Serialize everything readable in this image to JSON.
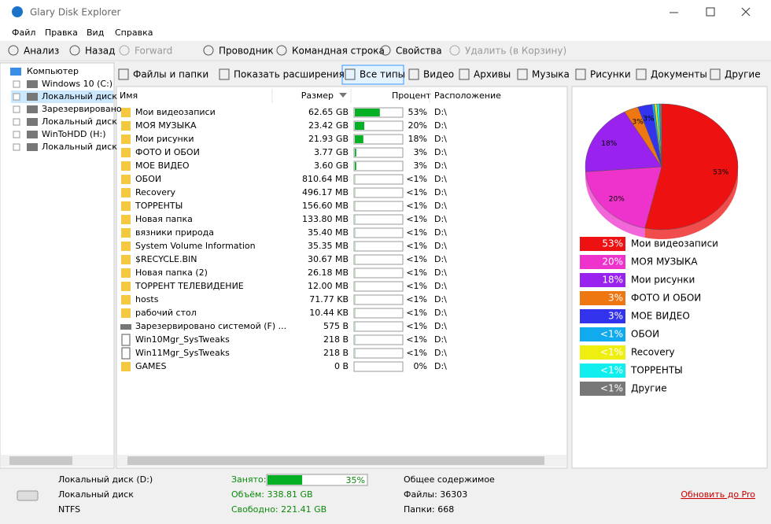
{
  "window": {
    "title": "Glary Disk Explorer"
  },
  "menu": [
    "Файл",
    "Правка",
    "Вид",
    "Справка"
  ],
  "toolbar": [
    "Анализ",
    "Назад",
    "Forward",
    "Проводник",
    "Командная строка",
    "Свойства",
    "Удалить (в Корзину)"
  ],
  "tree": [
    "Компьютер",
    "Windows 10 (C:)",
    "Локальный диск",
    "Зарезервировано",
    "Локальный диск",
    "WinToHDD (H:)",
    "Локальный диск"
  ],
  "filters": [
    "Файлы и папки",
    "Показать расширения",
    "Все типы",
    "Видео",
    "Архивы",
    "Музыка",
    "Рисунки",
    "Документы",
    "Другие"
  ],
  "columns": [
    "Имя",
    "Размер",
    "Процент",
    "Расположение"
  ],
  "rows": [
    {
      "kind": "folder",
      "name": "Мои видеозаписи",
      "size": "62.65 GB",
      "percent": {
        "value": 53,
        "label": "53%"
      },
      "location": "D:\\"
    },
    {
      "kind": "folder",
      "name": "МОЯ МУЗЫКА",
      "size": "23.42 GB",
      "percent": {
        "value": 20,
        "label": "20%"
      },
      "location": "D:\\"
    },
    {
      "kind": "folder",
      "name": "Мои рисунки",
      "size": "21.93 GB",
      "percent": {
        "value": 18,
        "label": "18%"
      },
      "location": "D:\\"
    },
    {
      "kind": "folder",
      "name": "ФОТО И ОБОИ",
      "size": "3.77 GB",
      "percent": {
        "value": 3,
        "label": "3%"
      },
      "location": "D:\\"
    },
    {
      "kind": "folder",
      "name": "МОЕ ВИДЕО",
      "size": "3.60 GB",
      "percent": {
        "value": 3,
        "label": "3%"
      },
      "location": "D:\\"
    },
    {
      "kind": "folder",
      "name": "ОБОИ",
      "size": "810.64 MB",
      "percent": {
        "value": 0.5,
        "label": "<1%"
      },
      "location": "D:\\"
    },
    {
      "kind": "folder",
      "name": "Recovery",
      "size": "496.17 MB",
      "percent": {
        "value": 0.5,
        "label": "<1%"
      },
      "location": "D:\\"
    },
    {
      "kind": "folder",
      "name": "ТОРРЕНТЫ",
      "size": "156.60 MB",
      "percent": {
        "value": 0.5,
        "label": "<1%"
      },
      "location": "D:\\"
    },
    {
      "kind": "folder",
      "name": "Новая папка",
      "size": "133.80 MB",
      "percent": {
        "value": 0.5,
        "label": "<1%"
      },
      "location": "D:\\"
    },
    {
      "kind": "folder",
      "name": "вязники природа",
      "size": "35.40 MB",
      "percent": {
        "value": 0.5,
        "label": "<1%"
      },
      "location": "D:\\"
    },
    {
      "kind": "folder",
      "name": "System Volume Information",
      "size": "35.35 MB",
      "percent": {
        "value": 0.5,
        "label": "<1%"
      },
      "location": "D:\\"
    },
    {
      "kind": "folder",
      "name": "$RECYCLE.BIN",
      "size": "30.67 MB",
      "percent": {
        "value": 0.5,
        "label": "<1%"
      },
      "location": "D:\\"
    },
    {
      "kind": "folder",
      "name": "Новая папка (2)",
      "size": "26.18 MB",
      "percent": {
        "value": 0.5,
        "label": "<1%"
      },
      "location": "D:\\"
    },
    {
      "kind": "folder",
      "name": "ТОРРЕНТ ТЕЛЕВИДЕНИЕ",
      "size": "12.00 MB",
      "percent": {
        "value": 0.5,
        "label": "<1%"
      },
      "location": "D:\\"
    },
    {
      "kind": "folder",
      "name": "hosts",
      "size": "71.77 KB",
      "percent": {
        "value": 0.5,
        "label": "<1%"
      },
      "location": "D:\\"
    },
    {
      "kind": "folder",
      "name": "рабочий стол",
      "size": "10.44 KB",
      "percent": {
        "value": 0.5,
        "label": "<1%"
      },
      "location": "D:\\"
    },
    {
      "kind": "drive",
      "name": "Зарезервировано системой (F) ...",
      "size": "575 B",
      "percent": {
        "value": 0.5,
        "label": "<1%"
      },
      "location": "D:\\"
    },
    {
      "kind": "file",
      "name": "Win10Mgr_SysTweaks",
      "size": "218 B",
      "percent": {
        "value": 0.5,
        "label": "<1%"
      },
      "location": "D:\\"
    },
    {
      "kind": "file",
      "name": "Win11Mgr_SysTweaks",
      "size": "218 B",
      "percent": {
        "value": 0.5,
        "label": "<1%"
      },
      "location": "D:\\"
    },
    {
      "kind": "folder",
      "name": "GAMES",
      "size": "0 B",
      "percent": {
        "value": 0,
        "label": "0%"
      },
      "location": "D:\\"
    }
  ],
  "pie": {
    "slices": [
      {
        "name": "Мои видеозаписи",
        "color": "#ee1111",
        "value": 53,
        "label": "53%"
      },
      {
        "name": "МОЯ МУЗЫКА",
        "color": "#ee33cc",
        "value": 20,
        "label": "20%"
      },
      {
        "name": "Мои рисунки",
        "color": "#9922ee",
        "value": 18,
        "label": "18%"
      },
      {
        "name": "ФОТО И ОБОИ",
        "color": "#ee7711",
        "value": 3,
        "label": "3%"
      },
      {
        "name": "МОЕ ВИДЕО",
        "color": "#3333ee",
        "value": 3,
        "label": "3%"
      },
      {
        "name": "ОБОИ",
        "color": "#11aaee",
        "value": 0.5,
        "label": "<1%"
      },
      {
        "name": "Recovery",
        "color": "#eeee11",
        "value": 0.5,
        "label": "<1%"
      },
      {
        "name": "ТОРРЕНТЫ",
        "color": "#11eeee",
        "value": 0.5,
        "label": "<1%"
      },
      {
        "name": "Другие",
        "color": "#777777",
        "value": 0.5,
        "label": "<1%"
      }
    ]
  },
  "status": {
    "drive": "Локальный диск (D:)",
    "type": "Локальный диск",
    "fs": "NTFS",
    "used_label": "Занято:",
    "used": {
      "value": 35,
      "label": "35%"
    },
    "volume": "Объём: 338.81 GB",
    "free": "Свободно: 221.41 GB",
    "contents": "Общее содержимое",
    "files": "Файлы: 36303",
    "folders": "Папки: 668",
    "upgrade": "Обновить до Pro"
  }
}
